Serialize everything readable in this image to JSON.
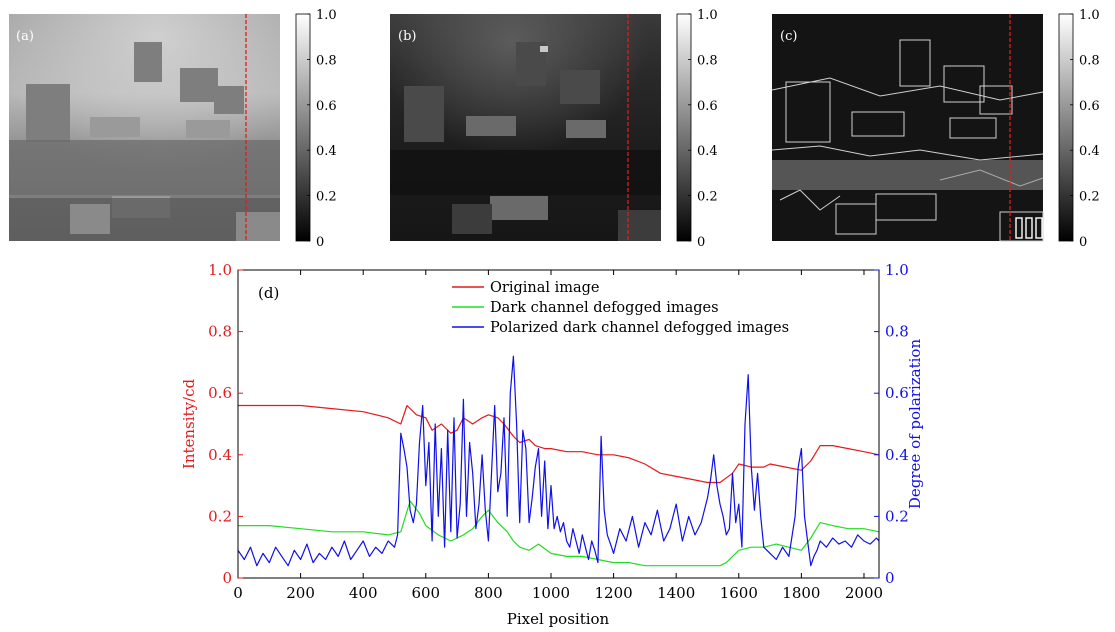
{
  "panels": [
    {
      "label": "(a)",
      "kind": "original"
    },
    {
      "label": "(b)",
      "kind": "dark-channel"
    },
    {
      "label": "(c)",
      "kind": "polarized"
    }
  ],
  "colorbar_ticks": [
    "0",
    "0.2",
    "0.4",
    "0.6",
    "0.8",
    "1.0"
  ],
  "colors": {
    "original": "#e41a1c",
    "dark_channel": "#22dd22",
    "polarized": "#1010e8",
    "left_axis": "#e41a1c",
    "right_axis": "#1010e8",
    "marker_line": "#e41a1c"
  },
  "chart_data": {
    "type": "line",
    "panel_label": "(d)",
    "xlabel": "Pixel position",
    "ylabel_left": "Intensity/cd",
    "ylabel_right": "Degree of polarization",
    "xlim": [
      0,
      2048
    ],
    "ylim_left": [
      0,
      1.0
    ],
    "ylim_right": [
      0,
      1.0
    ],
    "xticks": [
      "0",
      "200",
      "400",
      "600",
      "800",
      "1000",
      "1200",
      "1400",
      "1600",
      "1800",
      "2000"
    ],
    "yticks_left": [
      "0",
      "0.2",
      "0.4",
      "0.6",
      "0.8",
      "1.0"
    ],
    "yticks_right": [
      "0",
      "0.2",
      "0.4",
      "0.6",
      "0.8",
      "1.0"
    ],
    "legend_position": "top-center",
    "grid": false,
    "series": [
      {
        "name": "Original image",
        "axis": "left",
        "color": "#e41a1c",
        "x": [
          0,
          100,
          200,
          300,
          400,
          480,
          520,
          540,
          570,
          600,
          620,
          650,
          680,
          700,
          720,
          750,
          780,
          800,
          830,
          850,
          880,
          900,
          930,
          950,
          980,
          1000,
          1050,
          1100,
          1150,
          1200,
          1250,
          1300,
          1350,
          1400,
          1450,
          1500,
          1540,
          1580,
          1600,
          1640,
          1680,
          1700,
          1750,
          1800,
          1830,
          1860,
          1900,
          1950,
          2000,
          2048
        ],
        "values": [
          0.56,
          0.56,
          0.56,
          0.55,
          0.54,
          0.52,
          0.5,
          0.56,
          0.53,
          0.52,
          0.48,
          0.5,
          0.47,
          0.48,
          0.52,
          0.5,
          0.52,
          0.53,
          0.52,
          0.5,
          0.46,
          0.44,
          0.45,
          0.43,
          0.42,
          0.42,
          0.41,
          0.41,
          0.4,
          0.4,
          0.39,
          0.37,
          0.34,
          0.33,
          0.32,
          0.31,
          0.31,
          0.34,
          0.37,
          0.36,
          0.36,
          0.37,
          0.36,
          0.35,
          0.38,
          0.43,
          0.43,
          0.42,
          0.41,
          0.4
        ]
      },
      {
        "name": "Dark channel defogged images",
        "axis": "left",
        "color": "#22dd22",
        "x": [
          0,
          100,
          200,
          300,
          400,
          480,
          520,
          550,
          580,
          600,
          640,
          680,
          720,
          750,
          780,
          800,
          830,
          860,
          880,
          900,
          930,
          960,
          1000,
          1050,
          1100,
          1150,
          1200,
          1250,
          1300,
          1350,
          1400,
          1450,
          1500,
          1540,
          1560,
          1600,
          1640,
          1680,
          1720,
          1760,
          1800,
          1830,
          1860,
          1900,
          1950,
          2000,
          2048
        ],
        "values": [
          0.17,
          0.17,
          0.16,
          0.15,
          0.15,
          0.14,
          0.15,
          0.25,
          0.21,
          0.17,
          0.14,
          0.12,
          0.14,
          0.16,
          0.2,
          0.22,
          0.18,
          0.15,
          0.12,
          0.1,
          0.09,
          0.11,
          0.08,
          0.07,
          0.07,
          0.06,
          0.05,
          0.05,
          0.04,
          0.04,
          0.04,
          0.04,
          0.04,
          0.04,
          0.05,
          0.09,
          0.1,
          0.1,
          0.11,
          0.1,
          0.09,
          0.13,
          0.18,
          0.17,
          0.16,
          0.16,
          0.15
        ]
      },
      {
        "name": "Polarized dark channel defogged images",
        "axis": "right",
        "color": "#1010e8",
        "x": [
          0,
          20,
          40,
          60,
          80,
          100,
          120,
          140,
          160,
          180,
          200,
          220,
          240,
          260,
          280,
          300,
          320,
          340,
          360,
          380,
          400,
          420,
          440,
          460,
          480,
          500,
          510,
          520,
          530,
          540,
          550,
          560,
          570,
          580,
          590,
          600,
          610,
          620,
          630,
          640,
          650,
          660,
          670,
          680,
          690,
          700,
          710,
          720,
          730,
          740,
          750,
          760,
          770,
          780,
          790,
          800,
          810,
          820,
          830,
          840,
          850,
          860,
          870,
          880,
          890,
          900,
          910,
          920,
          930,
          940,
          950,
          960,
          970,
          980,
          990,
          1000,
          1010,
          1020,
          1030,
          1040,
          1050,
          1060,
          1070,
          1080,
          1090,
          1100,
          1110,
          1120,
          1130,
          1140,
          1150,
          1160,
          1170,
          1180,
          1190,
          1200,
          1220,
          1240,
          1260,
          1280,
          1300,
          1320,
          1340,
          1360,
          1380,
          1400,
          1420,
          1440,
          1460,
          1480,
          1500,
          1510,
          1520,
          1530,
          1540,
          1550,
          1560,
          1570,
          1580,
          1590,
          1600,
          1610,
          1620,
          1630,
          1640,
          1650,
          1660,
          1670,
          1680,
          1700,
          1720,
          1740,
          1760,
          1780,
          1790,
          1800,
          1810,
          1820,
          1830,
          1840,
          1850,
          1860,
          1880,
          1900,
          1920,
          1940,
          1960,
          1980,
          2000,
          2020,
          2040,
          2048
        ],
        "values": [
          0.09,
          0.06,
          0.1,
          0.04,
          0.08,
          0.05,
          0.1,
          0.07,
          0.04,
          0.09,
          0.06,
          0.11,
          0.05,
          0.08,
          0.06,
          0.1,
          0.07,
          0.12,
          0.06,
          0.09,
          0.12,
          0.07,
          0.1,
          0.08,
          0.12,
          0.1,
          0.14,
          0.47,
          0.42,
          0.36,
          0.22,
          0.18,
          0.24,
          0.44,
          0.56,
          0.3,
          0.44,
          0.12,
          0.5,
          0.2,
          0.42,
          0.1,
          0.48,
          0.15,
          0.52,
          0.13,
          0.24,
          0.58,
          0.2,
          0.44,
          0.34,
          0.16,
          0.24,
          0.4,
          0.22,
          0.12,
          0.34,
          0.56,
          0.28,
          0.34,
          0.52,
          0.2,
          0.6,
          0.72,
          0.5,
          0.18,
          0.48,
          0.42,
          0.18,
          0.26,
          0.36,
          0.42,
          0.2,
          0.38,
          0.16,
          0.3,
          0.16,
          0.2,
          0.15,
          0.18,
          0.12,
          0.1,
          0.16,
          0.12,
          0.08,
          0.14,
          0.1,
          0.06,
          0.12,
          0.09,
          0.05,
          0.46,
          0.22,
          0.14,
          0.11,
          0.08,
          0.16,
          0.12,
          0.2,
          0.1,
          0.18,
          0.14,
          0.22,
          0.12,
          0.16,
          0.24,
          0.12,
          0.2,
          0.14,
          0.18,
          0.26,
          0.32,
          0.4,
          0.3,
          0.24,
          0.2,
          0.14,
          0.16,
          0.34,
          0.18,
          0.24,
          0.1,
          0.5,
          0.66,
          0.36,
          0.22,
          0.34,
          0.2,
          0.1,
          0.08,
          0.06,
          0.1,
          0.07,
          0.2,
          0.36,
          0.42,
          0.2,
          0.12,
          0.04,
          0.07,
          0.09,
          0.12,
          0.1,
          0.13,
          0.11,
          0.12,
          0.1,
          0.14,
          0.12,
          0.11,
          0.13,
          0.12
        ]
      }
    ]
  }
}
